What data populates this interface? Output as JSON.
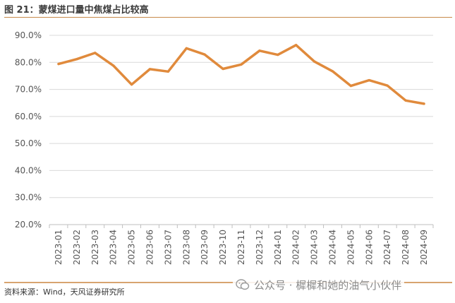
{
  "header": {
    "title": "图 21：蒙煤进口量中焦煤占比较高"
  },
  "footer": {
    "source": "资料来源：Wind，天风证券研究所"
  },
  "watermark": {
    "text": "公众号 · 樨樨和她的油气小伙伴",
    "icon": "wechat-icon"
  },
  "colors": {
    "line": "#e08a3c",
    "grid": "#d9d9d9",
    "rule": "#c78a4a"
  },
  "chart_data": {
    "type": "line",
    "title": "",
    "xlabel": "",
    "ylabel": "",
    "grid": true,
    "legend": "none",
    "ylim": [
      0.2,
      0.9
    ],
    "yticks": [
      "20.0%",
      "30.0%",
      "40.0%",
      "50.0%",
      "60.0%",
      "70.0%",
      "80.0%",
      "90.0%"
    ],
    "x": [
      "2023-01",
      "2023-02",
      "2023-03",
      "2023-04",
      "2023-05",
      "2023-06",
      "2023-07",
      "2023-08",
      "2023-09",
      "2023-10",
      "2023-11",
      "2023-12",
      "2024-01",
      "2024-02",
      "2024-03",
      "2024-04",
      "2024-05",
      "2024-06",
      "2024-07",
      "2024-08",
      "2024-09"
    ],
    "series": [
      {
        "values": [
          0.794,
          0.812,
          0.835,
          0.788,
          0.718,
          0.775,
          0.766,
          0.852,
          0.829,
          0.776,
          0.792,
          0.843,
          0.828,
          0.864,
          0.803,
          0.767,
          0.713,
          0.734,
          0.714,
          0.659,
          0.647
        ]
      }
    ]
  }
}
